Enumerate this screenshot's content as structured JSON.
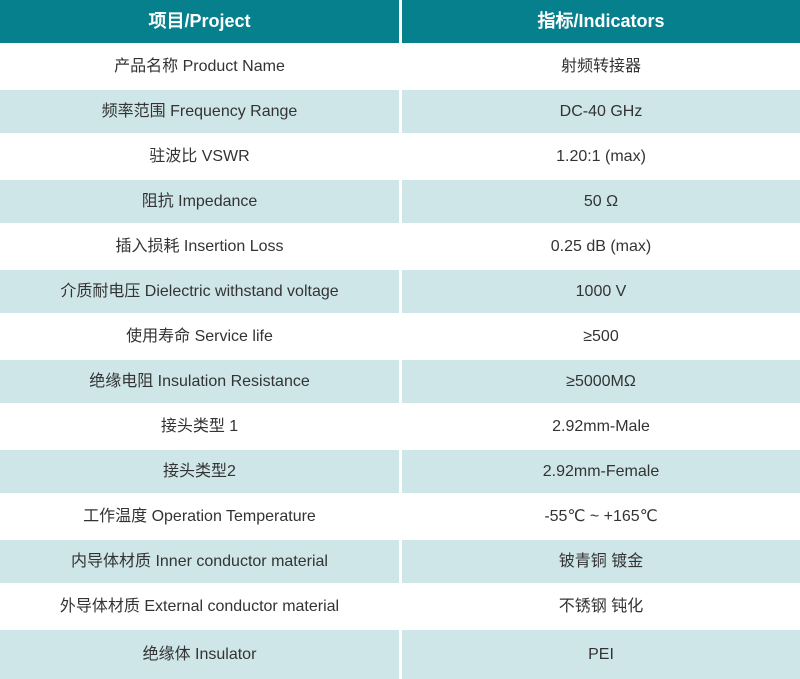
{
  "colors": {
    "header_bg": "#07808D",
    "row_alt_bg": "#CFE6E9",
    "header_text": "#FFFFFF",
    "body_text": "#333333"
  },
  "table": {
    "headers": [
      {
        "label": "项目/Project"
      },
      {
        "label": "指标/Indicators"
      }
    ],
    "rows": [
      {
        "project": "产品名称 Product Name",
        "indicator": "射频转接器"
      },
      {
        "project": "频率范围 Frequency Range",
        "indicator": "DC-40 GHz"
      },
      {
        "project": "驻波比 VSWR",
        "indicator": "1.20:1 (max)"
      },
      {
        "project": "阻抗 Impedance",
        "indicator": "50 Ω"
      },
      {
        "project": "插入损耗 Insertion Loss",
        "indicator": "0.25 dB (max)"
      },
      {
        "project": "介质耐电压 Dielectric withstand voltage",
        "indicator": "1000 V"
      },
      {
        "project": "使用寿命 Service life",
        "indicator": "≥500"
      },
      {
        "project": "绝缘电阻 Insulation Resistance",
        "indicator": "≥5000MΩ"
      },
      {
        "project": "接头类型 1",
        "indicator": "2.92mm-Male"
      },
      {
        "project": "接头类型2",
        "indicator": "2.92mm-Female"
      },
      {
        "project": "工作温度 Operation Temperature",
        "indicator": "-55℃ ~ +165℃"
      },
      {
        "project": "内导体材质 Inner conductor material",
        "indicator": "铍青铜 镀金"
      },
      {
        "project": "外导体材质 External conductor material",
        "indicator": "不锈钢 钝化"
      },
      {
        "project": "绝缘体 Insulator",
        "indicator": "PEI"
      }
    ]
  }
}
